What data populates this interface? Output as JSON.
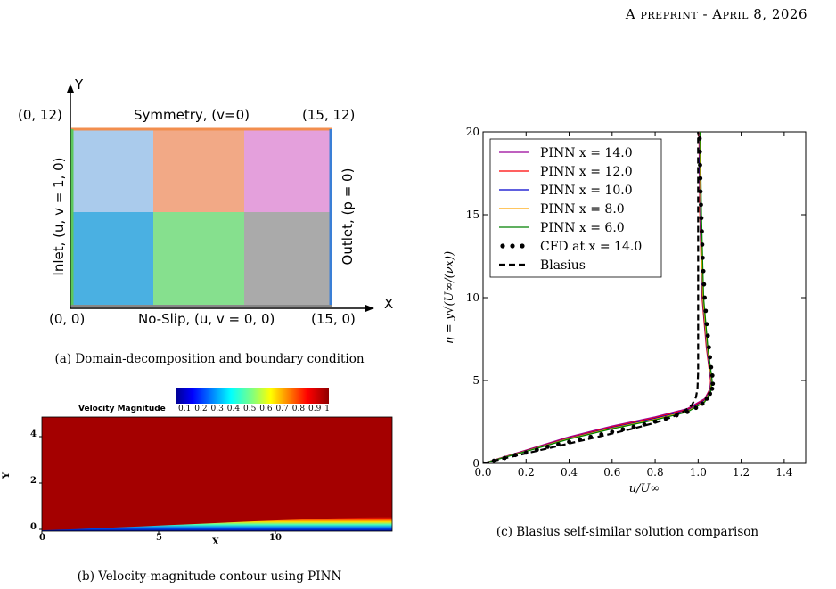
{
  "header": {
    "running_title": "A preprint - April 8, 2026"
  },
  "panel_a": {
    "caption": "(a) Domain-decomposition and boundary condition",
    "axis_y": "Y",
    "axis_x": "X",
    "corner_top_left": "(0, 12)",
    "corner_top_right": "(15, 12)",
    "corner_bottom_left": "(0, 0)",
    "corner_bottom_right": "(15, 0)",
    "top_bc": "Symmetry, (v=0)",
    "bottom_bc": "No-Slip, (u, v = 0, 0)",
    "left_bc": "Inlet, (u, v = 1, 0)",
    "right_bc": "Outlet, (p = 0)",
    "subdomain_colors": [
      "#aacbec",
      "#f2a986",
      "#e4a0dc",
      "#4ab0e2",
      "#86e08e",
      "#aaaaaa"
    ],
    "boundary_colors": {
      "top": "#f28e4e",
      "left": "#5cc85c",
      "right": "#3a7fd6",
      "bottom": "#888888"
    }
  },
  "panel_b": {
    "caption": "(b) Velocity-magnitude contour using PINN",
    "colorbar_title": "Velocity Magnitude",
    "colorbar_ticks": [
      "0.1",
      "0.2",
      "0.3",
      "0.4",
      "0.5",
      "0.6",
      "0.7",
      "0.8",
      "0.9",
      "1"
    ],
    "xlabel": "X",
    "ylabel": "Y",
    "x_ticks": [
      "0",
      "5",
      "10"
    ],
    "y_ticks": [
      "0",
      "2",
      "4"
    ]
  },
  "chart_data": {
    "type": "line",
    "caption": "(c) Blasius self-similar solution comparison",
    "xlabel": "u/U∞",
    "ylabel": "η = y√(U∞/(νx))",
    "xlim": [
      0.0,
      1.5
    ],
    "ylim": [
      0,
      20
    ],
    "x_ticks": [
      "0.0",
      "0.2",
      "0.4",
      "0.6",
      "0.8",
      "1.0",
      "1.2",
      "1.4"
    ],
    "y_ticks": [
      "0",
      "5",
      "10",
      "15",
      "20"
    ],
    "legend_position": "top-left",
    "series": [
      {
        "name": "PINN x = 14.0",
        "color": "#990099",
        "style": "solid",
        "points": [
          [
            0,
            0
          ],
          [
            0.2,
            0.8
          ],
          [
            0.4,
            1.6
          ],
          [
            0.6,
            2.25
          ],
          [
            0.8,
            2.8
          ],
          [
            0.95,
            3.3
          ],
          [
            1.03,
            3.9
          ],
          [
            1.055,
            4.5
          ],
          [
            1.06,
            5
          ],
          [
            1.04,
            7
          ],
          [
            1.02,
            10
          ],
          [
            1.01,
            15
          ],
          [
            1.005,
            20
          ]
        ]
      },
      {
        "name": "PINN x = 12.0",
        "color": "#ff0000",
        "style": "solid",
        "points": [
          [
            0,
            0
          ],
          [
            0.2,
            0.78
          ],
          [
            0.4,
            1.55
          ],
          [
            0.6,
            2.2
          ],
          [
            0.8,
            2.75
          ],
          [
            0.95,
            3.25
          ],
          [
            1.03,
            3.85
          ],
          [
            1.055,
            4.45
          ],
          [
            1.058,
            5
          ],
          [
            1.038,
            7
          ],
          [
            1.018,
            10
          ],
          [
            1.008,
            15
          ],
          [
            1.004,
            20
          ]
        ]
      },
      {
        "name": "PINN x = 10.0",
        "color": "#0000cc",
        "style": "solid",
        "points": [
          [
            0,
            0
          ],
          [
            0.2,
            0.76
          ],
          [
            0.4,
            1.52
          ],
          [
            0.6,
            2.15
          ],
          [
            0.8,
            2.7
          ],
          [
            0.95,
            3.2
          ],
          [
            1.03,
            3.8
          ],
          [
            1.056,
            4.4
          ],
          [
            1.06,
            5
          ],
          [
            1.04,
            7
          ],
          [
            1.02,
            10
          ],
          [
            1.01,
            15
          ],
          [
            1.006,
            20
          ]
        ]
      },
      {
        "name": "PINN x = 8.0",
        "color": "#ffa500",
        "style": "solid",
        "points": [
          [
            0,
            0
          ],
          [
            0.2,
            0.74
          ],
          [
            0.4,
            1.5
          ],
          [
            0.6,
            2.12
          ],
          [
            0.8,
            2.66
          ],
          [
            0.95,
            3.15
          ],
          [
            1.03,
            3.75
          ],
          [
            1.057,
            4.35
          ],
          [
            1.062,
            5
          ],
          [
            1.042,
            7
          ],
          [
            1.022,
            10
          ],
          [
            1.012,
            15
          ],
          [
            1.008,
            20
          ]
        ]
      },
      {
        "name": "PINN x = 6.0",
        "color": "#008000",
        "style": "solid",
        "points": [
          [
            0,
            0
          ],
          [
            0.2,
            0.72
          ],
          [
            0.4,
            1.47
          ],
          [
            0.6,
            2.08
          ],
          [
            0.8,
            2.62
          ],
          [
            0.95,
            3.1
          ],
          [
            1.03,
            3.7
          ],
          [
            1.058,
            4.3
          ],
          [
            1.065,
            5
          ],
          [
            1.045,
            7
          ],
          [
            1.025,
            10
          ],
          [
            1.015,
            15
          ],
          [
            1.01,
            20
          ]
        ]
      },
      {
        "name": "CFD at x = 14.0",
        "color": "#000000",
        "style": "dots",
        "points": [
          [
            0,
            0
          ],
          [
            0.05,
            0.15
          ],
          [
            0.1,
            0.32
          ],
          [
            0.15,
            0.5
          ],
          [
            0.2,
            0.65
          ],
          [
            0.25,
            0.82
          ],
          [
            0.3,
            1.0
          ],
          [
            0.35,
            1.15
          ],
          [
            0.4,
            1.3
          ],
          [
            0.45,
            1.45
          ],
          [
            0.5,
            1.6
          ],
          [
            0.55,
            1.75
          ],
          [
            0.6,
            1.9
          ],
          [
            0.65,
            2.05
          ],
          [
            0.7,
            2.2
          ],
          [
            0.75,
            2.35
          ],
          [
            0.8,
            2.52
          ],
          [
            0.85,
            2.7
          ],
          [
            0.9,
            2.9
          ],
          [
            0.95,
            3.1
          ],
          [
            0.99,
            3.35
          ],
          [
            1.02,
            3.6
          ],
          [
            1.04,
            3.9
          ],
          [
            1.055,
            4.2
          ],
          [
            1.065,
            4.5
          ],
          [
            1.068,
            4.8
          ],
          [
            1.066,
            5.3
          ],
          [
            1.06,
            5.8
          ],
          [
            1.055,
            6.4
          ],
          [
            1.05,
            7.0
          ],
          [
            1.045,
            7.7
          ],
          [
            1.04,
            8.4
          ],
          [
            1.035,
            9.2
          ],
          [
            1.03,
            10.0
          ],
          [
            1.027,
            10.8
          ],
          [
            1.024,
            11.6
          ],
          [
            1.021,
            12.4
          ],
          [
            1.019,
            13.2
          ],
          [
            1.017,
            14.0
          ],
          [
            1.015,
            14.8
          ],
          [
            1.013,
            15.6
          ],
          [
            1.011,
            16.4
          ],
          [
            1.01,
            17.2
          ],
          [
            1.009,
            18.0
          ],
          [
            1.008,
            18.8
          ],
          [
            1.007,
            19.6
          ]
        ]
      },
      {
        "name": "Blasius",
        "color": "#000000",
        "style": "dashed",
        "points": [
          [
            0,
            0
          ],
          [
            0.2,
            0.6
          ],
          [
            0.4,
            1.2
          ],
          [
            0.6,
            1.8
          ],
          [
            0.7,
            2.1
          ],
          [
            0.8,
            2.45
          ],
          [
            0.88,
            2.8
          ],
          [
            0.93,
            3.1
          ],
          [
            0.97,
            3.5
          ],
          [
            0.99,
            4.0
          ],
          [
            0.997,
            4.5
          ],
          [
            1.0,
            5.5
          ],
          [
            1.0,
            20
          ]
        ]
      }
    ]
  }
}
